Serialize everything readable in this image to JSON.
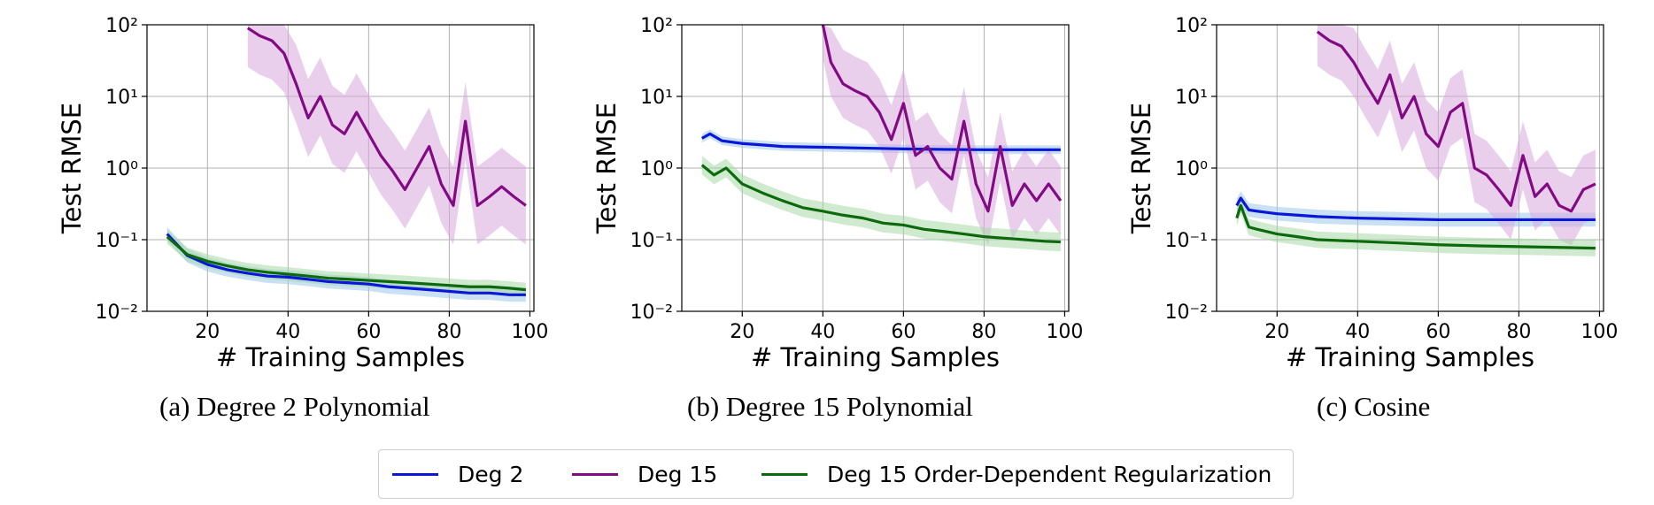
{
  "colors": {
    "deg2": "#0a16d8",
    "deg15": "#820a82",
    "deg15_odr": "#0c6a0c",
    "deg2_band": "#9cc8ea",
    "deg15_band": "#d9a8df",
    "deg15_odr_band": "#a8d8a8"
  },
  "captions": [
    "(a)  Degree 2 Polynomial",
    "(b)  Degree 15 Polynomial",
    "(c)  Cosine"
  ],
  "legend": [
    {
      "label": "Deg 2",
      "color": "#0a16d8"
    },
    {
      "label": "Deg 15",
      "color": "#820a82"
    },
    {
      "label": "Deg 15 Order-Dependent Regularization",
      "color": "#0c6a0c"
    }
  ],
  "chart_data": [
    {
      "type": "line",
      "caption": "(a)  Degree 2 Polynomial",
      "xlabel": "# Training Samples",
      "ylabel": "Test RMSE",
      "yscale": "log",
      "xlim": [
        5,
        101
      ],
      "ylim": [
        0.01,
        100
      ],
      "xticks": [
        "20",
        "40",
        "60",
        "80",
        "100"
      ],
      "yticks": [
        "10⁻²",
        "10⁻¹",
        "10⁰",
        "10¹",
        "10²"
      ],
      "grid": true,
      "series": [
        {
          "name": "Deg 2",
          "x": [
            10,
            15,
            20,
            25,
            30,
            35,
            40,
            45,
            50,
            55,
            60,
            65,
            70,
            75,
            80,
            85,
            90,
            95,
            99
          ],
          "y": [
            0.12,
            0.06,
            0.045,
            0.038,
            0.034,
            0.031,
            0.03,
            0.028,
            0.026,
            0.025,
            0.024,
            0.022,
            0.021,
            0.02,
            0.019,
            0.018,
            0.018,
            0.017,
            0.017
          ],
          "band_factor": 1.25
        },
        {
          "name": "Deg 15",
          "x": [
            30,
            33,
            36,
            39,
            42,
            45,
            48,
            51,
            54,
            57,
            60,
            63,
            66,
            69,
            72,
            75,
            78,
            81,
            84,
            87,
            90,
            93,
            96,
            99
          ],
          "y": [
            90,
            70,
            60,
            40,
            15,
            5,
            10,
            4,
            3,
            6,
            3,
            1.5,
            0.9,
            0.5,
            1.0,
            2.0,
            0.6,
            0.3,
            4.5,
            0.3,
            0.4,
            0.55,
            0.4,
            0.3
          ],
          "band_factor": 3.5
        },
        {
          "name": "Deg 15 Order-Dependent Regularization",
          "x": [
            10,
            15,
            20,
            25,
            30,
            35,
            40,
            45,
            50,
            55,
            60,
            65,
            70,
            75,
            80,
            85,
            90,
            95,
            99
          ],
          "y": [
            0.11,
            0.062,
            0.05,
            0.043,
            0.038,
            0.035,
            0.033,
            0.031,
            0.029,
            0.028,
            0.027,
            0.026,
            0.025,
            0.024,
            0.023,
            0.022,
            0.022,
            0.021,
            0.02
          ],
          "band_factor": 1.25
        }
      ]
    },
    {
      "type": "line",
      "caption": "(b)  Degree 15 Polynomial",
      "xlabel": "# Training Samples",
      "ylabel": "Test RMSE",
      "yscale": "log",
      "xlim": [
        5,
        101
      ],
      "ylim": [
        0.01,
        100
      ],
      "xticks": [
        "20",
        "40",
        "60",
        "80",
        "100"
      ],
      "yticks": [
        "10⁻²",
        "10⁻¹",
        "10⁰",
        "10¹",
        "10²"
      ],
      "grid": true,
      "series": [
        {
          "name": "Deg 2",
          "x": [
            10,
            12,
            15,
            20,
            25,
            30,
            40,
            50,
            60,
            70,
            80,
            90,
            99
          ],
          "y": [
            2.6,
            3.0,
            2.4,
            2.2,
            2.1,
            2.0,
            1.95,
            1.9,
            1.85,
            1.82,
            1.8,
            1.8,
            1.8
          ],
          "band_factor": 1.15
        },
        {
          "name": "Deg 15",
          "x": [
            40,
            42,
            45,
            48,
            51,
            54,
            57,
            60,
            63,
            66,
            69,
            72,
            75,
            78,
            81,
            84,
            87,
            90,
            93,
            96,
            99
          ],
          "y": [
            100,
            30,
            15,
            12,
            10,
            6,
            2.5,
            8,
            1.5,
            2.0,
            1.0,
            0.7,
            4.5,
            0.6,
            0.25,
            2.0,
            0.3,
            0.6,
            0.35,
            0.6,
            0.35
          ],
          "band_factor": 3.0
        },
        {
          "name": "Deg 15 Order-Dependent Regularization",
          "x": [
            10,
            13,
            16,
            20,
            25,
            30,
            35,
            40,
            45,
            50,
            55,
            60,
            65,
            70,
            75,
            80,
            85,
            90,
            95,
            99
          ],
          "y": [
            1.1,
            0.8,
            1.0,
            0.6,
            0.45,
            0.35,
            0.28,
            0.25,
            0.22,
            0.2,
            0.17,
            0.16,
            0.14,
            0.13,
            0.12,
            0.11,
            0.105,
            0.1,
            0.095,
            0.093
          ],
          "band_factor": 1.35
        }
      ]
    },
    {
      "type": "line",
      "caption": "(c)  Cosine",
      "xlabel": "# Training Samples",
      "ylabel": "Test RMSE",
      "yscale": "log",
      "xlim": [
        5,
        101
      ],
      "ylim": [
        0.01,
        100
      ],
      "xticks": [
        "20",
        "40",
        "60",
        "80",
        "100"
      ],
      "yticks": [
        "10⁻²",
        "10⁻¹",
        "10⁰",
        "10¹",
        "10²"
      ],
      "grid": true,
      "series": [
        {
          "name": "Deg 2",
          "x": [
            10,
            11,
            13,
            15,
            20,
            25,
            30,
            40,
            50,
            60,
            70,
            80,
            90,
            99
          ],
          "y": [
            0.3,
            0.38,
            0.26,
            0.25,
            0.23,
            0.22,
            0.21,
            0.2,
            0.195,
            0.19,
            0.19,
            0.19,
            0.19,
            0.19
          ],
          "band_factor": 1.25
        },
        {
          "name": "Deg 15",
          "x": [
            30,
            33,
            36,
            39,
            42,
            45,
            48,
            51,
            54,
            57,
            60,
            63,
            66,
            69,
            72,
            75,
            78,
            81,
            84,
            87,
            90,
            93,
            96,
            99
          ],
          "y": [
            80,
            60,
            50,
            30,
            15,
            8,
            20,
            5,
            10,
            3,
            2,
            6,
            8,
            1.0,
            0.8,
            0.5,
            0.3,
            1.5,
            0.4,
            0.6,
            0.3,
            0.25,
            0.5,
            0.6
          ],
          "band_factor": 3.0
        },
        {
          "name": "Deg 15 Order-Dependent Regularization",
          "x": [
            10,
            11,
            13,
            15,
            20,
            25,
            30,
            40,
            50,
            60,
            70,
            80,
            90,
            99
          ],
          "y": [
            0.2,
            0.3,
            0.15,
            0.14,
            0.12,
            0.11,
            0.1,
            0.095,
            0.09,
            0.085,
            0.082,
            0.08,
            0.078,
            0.076
          ],
          "band_factor": 1.3
        }
      ]
    }
  ]
}
